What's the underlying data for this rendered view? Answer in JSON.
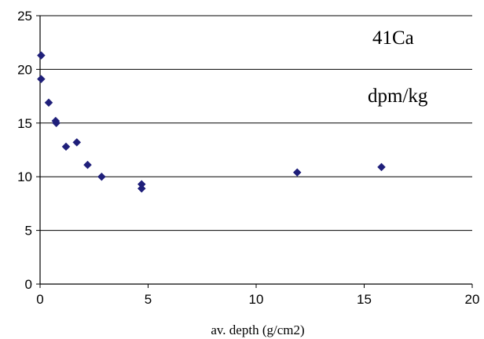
{
  "chart_data": {
    "type": "scatter",
    "title": "",
    "xlabel": "av. depth (g/cm2)",
    "ylabel": "",
    "xlim": [
      0,
      20
    ],
    "ylim": [
      0,
      25
    ],
    "x_ticks": [
      "0",
      "5",
      "10",
      "15",
      "20"
    ],
    "y_ticks": [
      "0",
      "5",
      "10",
      "15",
      "20",
      "25"
    ],
    "grid": "horizontal",
    "legend": "none",
    "marker_color": "#1f1f7a",
    "annotations": [
      "41Ca",
      "dpm/kg"
    ],
    "points": [
      {
        "x": 0.05,
        "y": 21.3
      },
      {
        "x": 0.05,
        "y": 19.1
      },
      {
        "x": 0.4,
        "y": 16.9
      },
      {
        "x": 0.72,
        "y": 15.2
      },
      {
        "x": 0.75,
        "y": 15.0
      },
      {
        "x": 1.2,
        "y": 12.8
      },
      {
        "x": 1.7,
        "y": 13.2
      },
      {
        "x": 2.2,
        "y": 11.1
      },
      {
        "x": 2.85,
        "y": 10.0
      },
      {
        "x": 4.7,
        "y": 9.3
      },
      {
        "x": 4.7,
        "y": 8.9
      },
      {
        "x": 11.9,
        "y": 10.4
      },
      {
        "x": 15.8,
        "y": 10.9
      }
    ]
  }
}
